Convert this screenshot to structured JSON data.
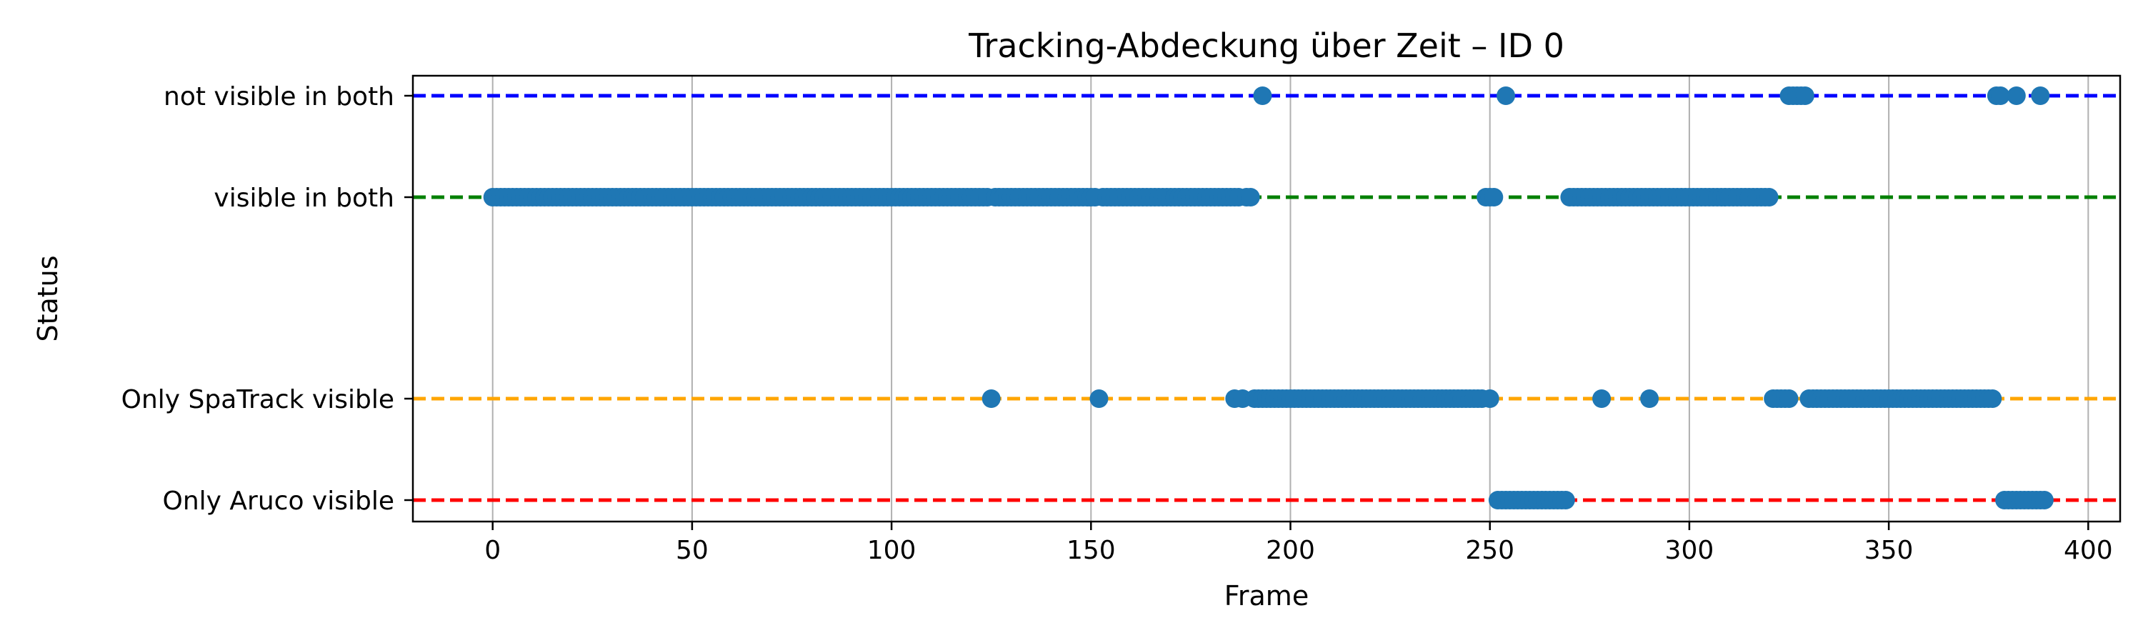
{
  "chart_data": {
    "type": "scatter",
    "title": "Tracking-Abdeckung über Zeit – ID 0",
    "xlabel": "Frame",
    "ylabel": "Status",
    "xlim": [
      -20,
      408
    ],
    "xticks": [
      0,
      50,
      100,
      150,
      200,
      250,
      300,
      350,
      400
    ],
    "grid": "x",
    "marker_color": "#1f77b4",
    "categories": [
      {
        "label": "not visible in both",
        "line_color": "#0000ff"
      },
      {
        "label": "visible in both",
        "line_color": "#008000"
      },
      {
        "label": "Only SpaTrack visible",
        "line_color": "#ffa500"
      },
      {
        "label": "Only Aruco visible",
        "line_color": "#ff0000"
      }
    ],
    "points": [
      {
        "category": "not visible in both",
        "frames": [
          193,
          254,
          325,
          326,
          327,
          328,
          329,
          377,
          378,
          382,
          388
        ]
      },
      {
        "category": "visible in both",
        "frames": [
          {
            "range": [
              0,
              124
            ]
          },
          {
            "range": [
              126,
              151
            ]
          },
          {
            "range": [
              153,
              187
            ]
          },
          189,
          190,
          {
            "range": [
              249,
              251
            ]
          },
          {
            "range": [
              270,
              320
            ]
          }
        ]
      },
      {
        "category": "Only SpaTrack visible",
        "frames": [
          125,
          152,
          186,
          188,
          {
            "range": [
              191,
              248
            ]
          },
          250,
          278,
          290,
          {
            "range": [
              321,
              325
            ]
          },
          {
            "range": [
              330,
              376
            ]
          }
        ]
      },
      {
        "category": "Only Aruco visible",
        "frames": [
          {
            "range": [
              252,
              269
            ]
          },
          {
            "range": [
              379,
              389
            ]
          }
        ]
      }
    ]
  }
}
